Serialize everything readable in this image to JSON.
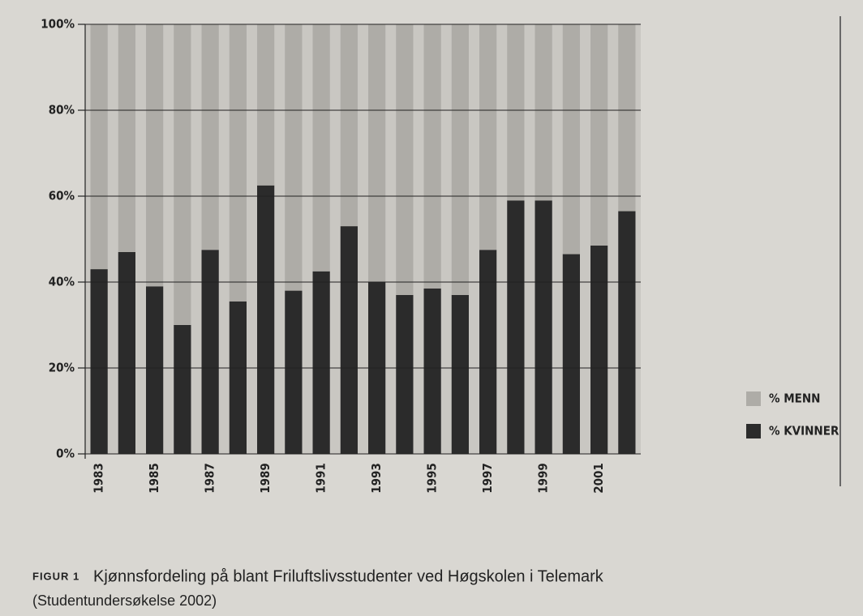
{
  "chart_data": {
    "type": "stacked_bar",
    "categories": [
      "1983",
      null,
      "1985",
      null,
      "1987",
      null,
      "1989",
      null,
      "1991",
      null,
      "1993",
      null,
      "1995",
      null,
      "1997",
      null,
      "1999",
      null,
      "2001",
      null
    ],
    "series": [
      {
        "name": "% KVINNER",
        "color": "#2b2b2b",
        "values": [
          43,
          47,
          39,
          30,
          47.5,
          35.5,
          62.5,
          38,
          42.5,
          53,
          40,
          37,
          38.5,
          37,
          47.5,
          59,
          59,
          46.5,
          48.5,
          56.5
        ]
      },
      {
        "name": "% MENN",
        "color": "#aeaca7",
        "values": [
          57,
          53,
          61,
          70,
          52.5,
          64.5,
          37.5,
          62,
          57.5,
          47,
          60,
          63,
          61.5,
          63,
          52.5,
          41,
          41,
          53.5,
          51.5,
          43.5
        ]
      }
    ],
    "ylim": [
      0,
      100
    ],
    "yticks": [
      {
        "value": 0,
        "label": "0%"
      },
      {
        "value": 20,
        "label": "20%"
      },
      {
        "value": 40,
        "label": "40%"
      },
      {
        "value": 60,
        "label": "60%"
      },
      {
        "value": 80,
        "label": "80%"
      },
      {
        "value": 100,
        "label": "100%"
      }
    ],
    "grid": true,
    "figure_label": "FIGUR 1",
    "title": "Kjønnsfordeling på blant Friluftslivsstudenter ved Høgskolen i Telemark",
    "subtitle": "(Studentundersøkelse 2002)"
  }
}
